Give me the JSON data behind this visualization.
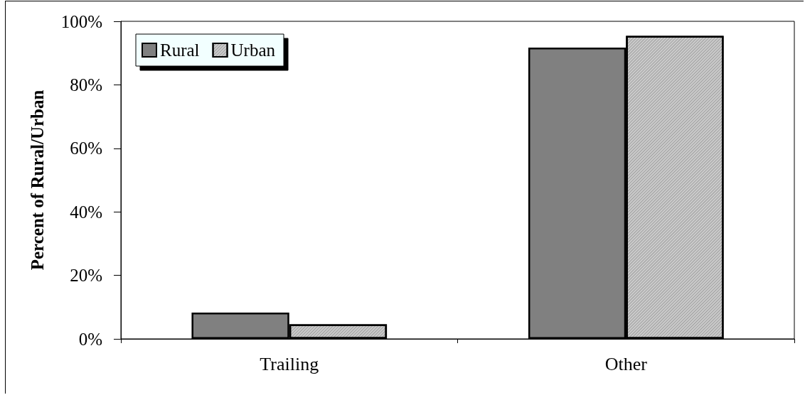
{
  "chart_data": {
    "type": "bar",
    "ylabel": "Percent of Rural/Urban",
    "categories": [
      "Trailing",
      "Other"
    ],
    "series": [
      {
        "name": "Rural",
        "color": "#808080",
        "values": [
          8.3,
          91.7
        ]
      },
      {
        "name": "Urban",
        "color": "#cccccc",
        "values": [
          4.6,
          95.4
        ]
      }
    ],
    "ylim": [
      0,
      100
    ],
    "yticks": [
      {
        "value": 0,
        "label": "0%"
      },
      {
        "value": 20,
        "label": "20%"
      },
      {
        "value": 40,
        "label": "40%"
      },
      {
        "value": 60,
        "label": "60%"
      },
      {
        "value": 80,
        "label": "80%"
      },
      {
        "value": 100,
        "label": "100%"
      }
    ],
    "grid": false,
    "legend": "top left"
  }
}
